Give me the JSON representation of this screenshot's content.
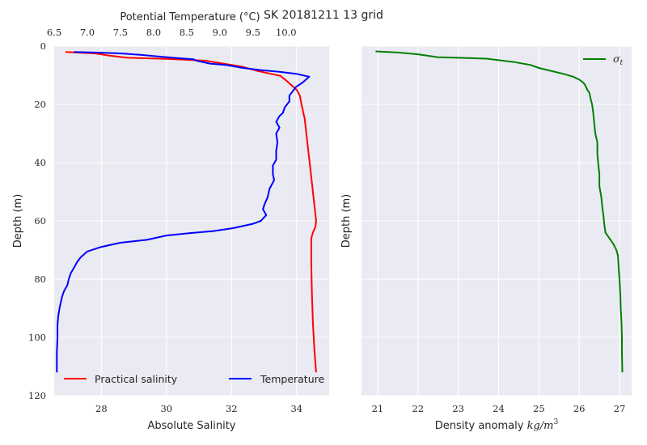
{
  "figure": {
    "title": "SK 20181211  13 grid"
  },
  "chart_data": [
    {
      "type": "line",
      "panel": "left",
      "ylabel": "Depth (m)",
      "ylim": [
        120,
        0
      ],
      "yticks": [
        0,
        20,
        40,
        60,
        80,
        100,
        120
      ],
      "grid": true,
      "legend": "bottom",
      "bottom_axis": {
        "label": "Absolute Salinity",
        "xlim": [
          26.55,
          35.0
        ],
        "ticks": [
          28,
          30,
          32,
          34
        ]
      },
      "top_axis": {
        "label": "Potential Temperature (°C)",
        "xlim": [
          6.5,
          10.65
        ],
        "ticks": [
          6.5,
          7.0,
          7.5,
          8.0,
          8.5,
          9.0,
          9.5,
          10.0
        ]
      },
      "series": [
        {
          "name": "Practical salinity",
          "color": "#ff0000",
          "axis": "bottom",
          "points": [
            [
              26.9,
              2
            ],
            [
              27.8,
              2.5
            ],
            [
              28.2,
              3.2
            ],
            [
              28.8,
              4
            ],
            [
              30,
              4.4
            ],
            [
              31.2,
              5
            ],
            [
              32.3,
              7
            ],
            [
              32.8,
              8.5
            ],
            [
              33.2,
              9.5
            ],
            [
              33.5,
              10.2
            ],
            [
              33.7,
              12
            ],
            [
              33.85,
              13.5
            ],
            [
              34.0,
              15
            ],
            [
              34.1,
              17
            ],
            [
              34.15,
              20
            ],
            [
              34.25,
              25
            ],
            [
              34.3,
              30
            ],
            [
              34.35,
              35
            ],
            [
              34.4,
              40
            ],
            [
              34.45,
              45
            ],
            [
              34.5,
              50
            ],
            [
              34.55,
              55
            ],
            [
              34.6,
              60
            ],
            [
              34.58,
              62
            ],
            [
              34.5,
              64
            ],
            [
              34.45,
              66
            ],
            [
              34.45,
              75
            ],
            [
              34.47,
              85
            ],
            [
              34.5,
              95
            ],
            [
              34.55,
              105
            ],
            [
              34.6,
              112
            ]
          ]
        },
        {
          "name": "Temperature",
          "color": "#0000ff",
          "axis": "top",
          "points": [
            [
              6.8,
              2
            ],
            [
              7.1,
              2.2
            ],
            [
              7.5,
              2.5
            ],
            [
              7.8,
              3
            ],
            [
              8.1,
              3.6
            ],
            [
              8.35,
              4.1
            ],
            [
              8.6,
              4.5
            ],
            [
              8.65,
              5
            ],
            [
              8.85,
              6
            ],
            [
              9.1,
              6.5
            ],
            [
              9.35,
              7.5
            ],
            [
              9.6,
              8.2
            ],
            [
              9.9,
              8.8
            ],
            [
              10.15,
              9.5
            ],
            [
              10.35,
              10.5
            ],
            [
              10.3,
              11.5
            ],
            [
              10.25,
              12.5
            ],
            [
              10.15,
              14
            ],
            [
              10.1,
              15.5
            ],
            [
              10.05,
              17
            ],
            [
              10.05,
              19
            ],
            [
              9.98,
              21
            ],
            [
              9.95,
              23
            ],
            [
              9.9,
              24
            ],
            [
              9.85,
              26
            ],
            [
              9.9,
              28
            ],
            [
              9.85,
              30
            ],
            [
              9.87,
              33
            ],
            [
              9.85,
              36
            ],
            [
              9.85,
              39
            ],
            [
              9.8,
              41
            ],
            [
              9.8,
              44
            ],
            [
              9.82,
              46
            ],
            [
              9.75,
              49
            ],
            [
              9.72,
              52
            ],
            [
              9.68,
              54
            ],
            [
              9.65,
              56
            ],
            [
              9.7,
              58
            ],
            [
              9.62,
              60
            ],
            [
              9.5,
              61
            ],
            [
              9.2,
              62.5
            ],
            [
              8.9,
              63.5
            ],
            [
              8.55,
              64.2
            ],
            [
              8.2,
              65
            ],
            [
              7.9,
              66.5
            ],
            [
              7.5,
              67.5
            ],
            [
              7.2,
              69
            ],
            [
              7.0,
              70.5
            ],
            [
              6.9,
              72.5
            ],
            [
              6.85,
              74
            ],
            [
              6.8,
              76
            ],
            [
              6.75,
              78
            ],
            [
              6.72,
              80
            ],
            [
              6.7,
              82
            ],
            [
              6.65,
              84
            ],
            [
              6.62,
              86
            ],
            [
              6.6,
              88
            ],
            [
              6.58,
              90
            ],
            [
              6.56,
              93
            ],
            [
              6.55,
              96
            ],
            [
              6.55,
              100
            ],
            [
              6.54,
              105
            ],
            [
              6.54,
              112
            ]
          ]
        }
      ]
    },
    {
      "type": "line",
      "panel": "right",
      "xlabel": "Density anomaly",
      "xlabel_units_math": "kg/m3",
      "ylabel": "Depth (m)",
      "xlim": [
        20.6,
        27.3
      ],
      "xticks": [
        21,
        22,
        23,
        24,
        25,
        26,
        27
      ],
      "ylim": [
        120,
        0
      ],
      "yticks": [
        0,
        20,
        40,
        60,
        80,
        100,
        120
      ],
      "grid": true,
      "legend": "top-right",
      "series": [
        {
          "name": "σt",
          "color": "#008000",
          "points": [
            [
              20.95,
              1.8
            ],
            [
              21.5,
              2.2
            ],
            [
              22.0,
              2.8
            ],
            [
              22.5,
              3.8
            ],
            [
              23.0,
              4.0
            ],
            [
              23.7,
              4.3
            ],
            [
              24.4,
              5.5
            ],
            [
              24.8,
              6.5
            ],
            [
              25.0,
              7.5
            ],
            [
              25.3,
              8.5
            ],
            [
              25.6,
              9.5
            ],
            [
              25.85,
              10.5
            ],
            [
              26.0,
              11.5
            ],
            [
              26.1,
              12.5
            ],
            [
              26.15,
              13.5
            ],
            [
              26.2,
              15
            ],
            [
              26.25,
              16
            ],
            [
              26.28,
              18
            ],
            [
              26.32,
              20
            ],
            [
              26.35,
              23
            ],
            [
              26.37,
              26
            ],
            [
              26.4,
              30
            ],
            [
              26.45,
              33
            ],
            [
              26.45,
              37
            ],
            [
              26.47,
              40
            ],
            [
              26.5,
              44
            ],
            [
              26.5,
              48
            ],
            [
              26.55,
              52
            ],
            [
              26.57,
              55
            ],
            [
              26.6,
              58
            ],
            [
              26.62,
              61
            ],
            [
              26.65,
              64
            ],
            [
              26.75,
              66
            ],
            [
              26.85,
              68
            ],
            [
              26.92,
              70
            ],
            [
              26.96,
              72
            ],
            [
              26.98,
              76
            ],
            [
              27.0,
              80
            ],
            [
              27.02,
              85
            ],
            [
              27.03,
              90
            ],
            [
              27.05,
              95
            ],
            [
              27.06,
              100
            ],
            [
              27.06,
              105
            ],
            [
              27.07,
              112
            ]
          ]
        }
      ]
    }
  ]
}
